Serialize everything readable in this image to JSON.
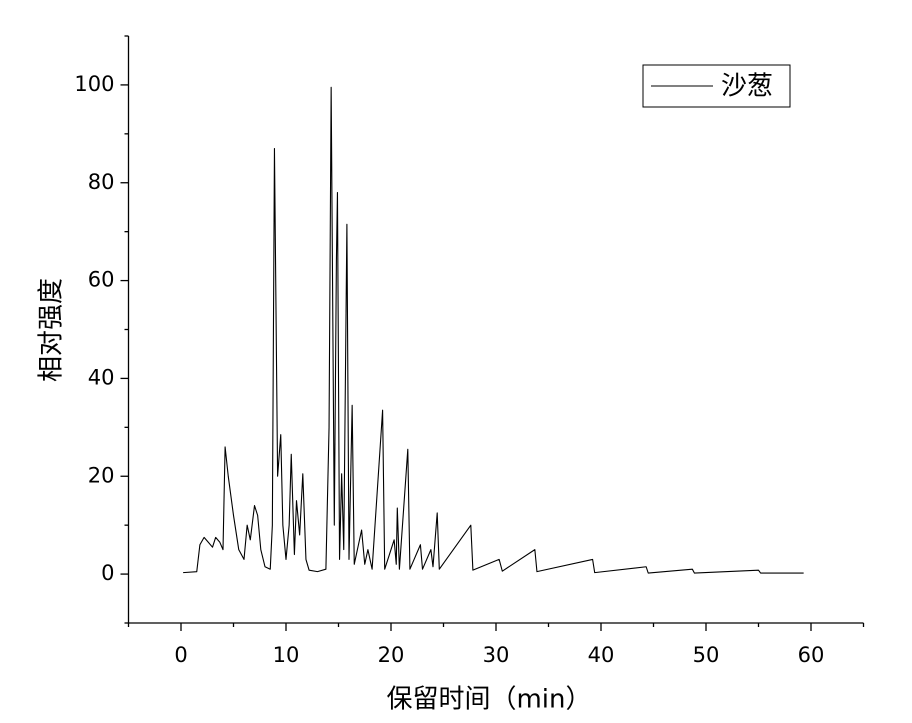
{
  "chart_data": {
    "type": "line",
    "x_label": "保留时间（min）",
    "y_label": "相对强度",
    "xlim": [
      -5,
      65
    ],
    "xticks": [
      0,
      10,
      20,
      30,
      40,
      50,
      60
    ],
    "ylim": [
      -10,
      110
    ],
    "yticks": [
      0,
      20,
      40,
      60,
      80,
      100
    ],
    "legend": "upper right",
    "x": [
      0.2,
      1.5,
      1.8,
      2.2,
      2.6,
      3.0,
      3.3,
      3.7,
      4.0,
      4.2,
      4.5,
      5.0,
      5.5,
      6.0,
      6.3,
      6.6,
      7.0,
      7.3,
      7.6,
      8.0,
      8.5,
      8.7,
      8.9,
      9.2,
      9.5,
      9.7,
      10.0,
      10.3,
      10.5,
      10.8,
      11.0,
      11.3,
      11.6,
      11.9,
      12.2,
      13.0,
      13.8,
      14.1,
      14.3,
      14.6,
      14.8,
      14.9,
      15.1,
      15.3,
      15.5,
      15.8,
      16.0,
      16.3,
      16.5,
      17.2,
      17.5,
      17.8,
      18.2,
      19.2,
      19.4,
      20.3,
      20.5,
      20.6,
      20.8,
      21.6,
      21.8,
      22.8,
      23.0,
      23.8,
      24.0,
      24.4,
      24.6,
      27.6,
      27.8,
      30.3,
      30.6,
      33.7,
      33.9,
      39.2,
      39.4,
      44.3,
      44.5,
      48.7,
      48.9,
      55.0,
      55.2,
      59.3
    ],
    "series": [
      {
        "name": "沙葱",
        "color": "#000000",
        "values": [
          0.3,
          0.5,
          6,
          7.5,
          6.5,
          5.5,
          7.5,
          6.5,
          5,
          26,
          20,
          12,
          5,
          3,
          10,
          7,
          14,
          12,
          5,
          1.5,
          1,
          10,
          87,
          20,
          28.5,
          10,
          3,
          10,
          24.5,
          4,
          15,
          8,
          20.5,
          3,
          0.8,
          0.5,
          1,
          30,
          99.5,
          10,
          64,
          78,
          3,
          20.5,
          5,
          71.5,
          3,
          34.5,
          2,
          9,
          2,
          5,
          1,
          33.5,
          1,
          7,
          2,
          13.5,
          1,
          25.5,
          1,
          6,
          1,
          5,
          1.5,
          12.5,
          1,
          10,
          0.8,
          3,
          0.6,
          5,
          0.5,
          3,
          0.3,
          1.5,
          0.2,
          1,
          0.2,
          0.8,
          0.2,
          0.2
        ]
      }
    ]
  }
}
